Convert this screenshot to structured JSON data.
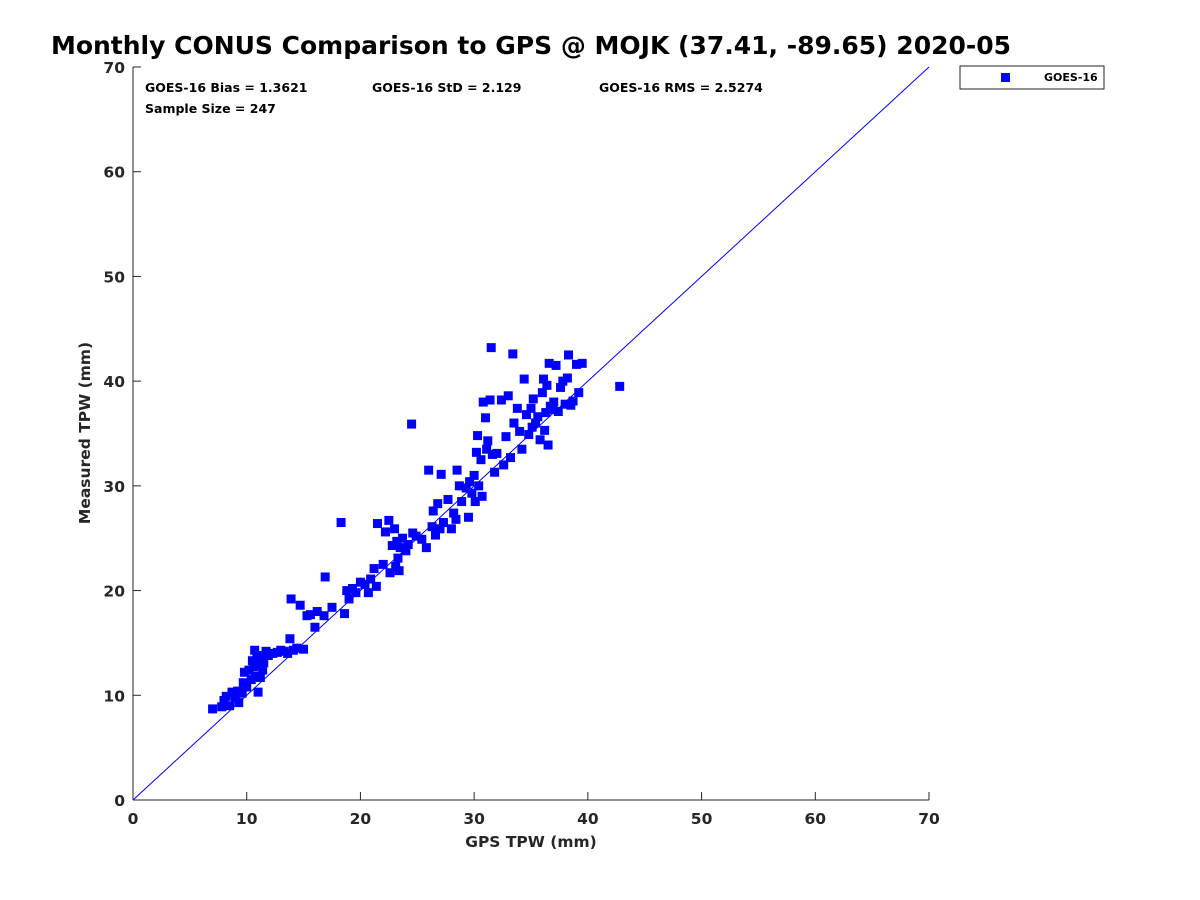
{
  "chart_data": {
    "type": "scatter",
    "title": "Monthly CONUS Comparison to GPS @ MOJK (37.41, -89.65) 2020-05",
    "xlabel": "GPS TPW (mm)",
    "ylabel": "Measured TPW (mm)",
    "xlim": [
      0,
      70
    ],
    "ylim": [
      0,
      70
    ],
    "xticks": [
      "0",
      "10",
      "20",
      "30",
      "40",
      "50",
      "60",
      "70"
    ],
    "yticks": [
      "0",
      "10",
      "20",
      "30",
      "40",
      "50",
      "60",
      "70"
    ],
    "grid": false,
    "legend_position": "top-right",
    "stats": {
      "bias": "GOES-16 Bias = 1.3621",
      "std": "GOES-16 StD = 2.129",
      "rms": "GOES-16 RMS = 2.5274",
      "sample_size": "Sample Size = 247"
    },
    "reference_line": {
      "from": [
        0,
        0
      ],
      "to": [
        70,
        70
      ],
      "color": "#0000ff"
    },
    "series": [
      {
        "name": "GOES-16",
        "color": "#0000ff",
        "marker": "square",
        "points": [
          [
            7.0,
            8.7
          ],
          [
            7.8,
            8.9
          ],
          [
            8.0,
            9.5
          ],
          [
            8.2,
            9.9
          ],
          [
            8.5,
            9.0
          ],
          [
            8.7,
            10.3
          ],
          [
            9.0,
            9.8
          ],
          [
            9.2,
            10.4
          ],
          [
            9.3,
            9.3
          ],
          [
            9.6,
            10.2
          ],
          [
            9.7,
            11.2
          ],
          [
            9.8,
            12.2
          ],
          [
            10.0,
            10.8
          ],
          [
            10.2,
            12.4
          ],
          [
            10.4,
            11.5
          ],
          [
            10.5,
            13.3
          ],
          [
            10.6,
            12.7
          ],
          [
            10.7,
            14.3
          ],
          [
            10.8,
            11.8
          ],
          [
            10.9,
            13.8
          ],
          [
            11.0,
            10.3
          ],
          [
            11.1,
            12.9
          ],
          [
            11.2,
            11.7
          ],
          [
            11.3,
            13.5
          ],
          [
            11.4,
            12.4
          ],
          [
            11.5,
            13.1
          ],
          [
            11.7,
            14.2
          ],
          [
            11.9,
            13.8
          ],
          [
            12.3,
            14.0
          ],
          [
            12.7,
            14.1
          ],
          [
            13.0,
            14.3
          ],
          [
            13.3,
            14.2
          ],
          [
            13.6,
            14.0
          ],
          [
            13.8,
            15.4
          ],
          [
            13.9,
            19.2
          ],
          [
            14.1,
            14.3
          ],
          [
            14.4,
            14.5
          ],
          [
            14.7,
            18.6
          ],
          [
            15.0,
            14.4
          ],
          [
            15.3,
            17.6
          ],
          [
            15.6,
            17.7
          ],
          [
            16.0,
            16.5
          ],
          [
            16.2,
            18.0
          ],
          [
            16.8,
            17.6
          ],
          [
            16.9,
            21.3
          ],
          [
            17.5,
            18.4
          ],
          [
            18.3,
            26.5
          ],
          [
            18.6,
            17.8
          ],
          [
            18.8,
            20.0
          ],
          [
            19.0,
            19.2
          ],
          [
            19.3,
            20.2
          ],
          [
            19.6,
            19.8
          ],
          [
            20.0,
            20.8
          ],
          [
            20.4,
            20.6
          ],
          [
            20.7,
            19.8
          ],
          [
            20.9,
            21.1
          ],
          [
            21.2,
            22.1
          ],
          [
            21.4,
            20.4
          ],
          [
            21.5,
            26.4
          ],
          [
            22.0,
            22.5
          ],
          [
            22.2,
            25.6
          ],
          [
            22.5,
            26.7
          ],
          [
            22.6,
            21.7
          ],
          [
            22.8,
            24.3
          ],
          [
            23.0,
            25.9
          ],
          [
            23.1,
            22.3
          ],
          [
            23.2,
            24.7
          ],
          [
            23.3,
            23.1
          ],
          [
            23.4,
            21.9
          ],
          [
            23.5,
            24.1
          ],
          [
            23.7,
            25.0
          ],
          [
            24.0,
            23.8
          ],
          [
            24.2,
            24.4
          ],
          [
            24.5,
            35.9
          ],
          [
            24.6,
            25.5
          ],
          [
            24.9,
            25.2
          ],
          [
            25.4,
            24.9
          ],
          [
            25.8,
            24.1
          ],
          [
            26.0,
            31.5
          ],
          [
            26.3,
            26.1
          ],
          [
            26.4,
            27.6
          ],
          [
            26.6,
            25.3
          ],
          [
            26.8,
            28.3
          ],
          [
            27.0,
            25.9
          ],
          [
            27.1,
            31.1
          ],
          [
            27.3,
            26.5
          ],
          [
            27.7,
            28.7
          ],
          [
            28.0,
            25.9
          ],
          [
            28.2,
            27.4
          ],
          [
            28.4,
            26.8
          ],
          [
            28.5,
            31.5
          ],
          [
            28.7,
            30.0
          ],
          [
            28.9,
            28.5
          ],
          [
            29.3,
            29.8
          ],
          [
            29.5,
            27.0
          ],
          [
            29.6,
            30.4
          ],
          [
            29.8,
            29.3
          ],
          [
            30.0,
            31.0
          ],
          [
            30.1,
            28.5
          ],
          [
            30.2,
            33.2
          ],
          [
            30.3,
            34.8
          ],
          [
            30.4,
            30.0
          ],
          [
            30.6,
            32.5
          ],
          [
            30.7,
            29.0
          ],
          [
            30.8,
            38.0
          ],
          [
            31.0,
            36.5
          ],
          [
            31.1,
            33.5
          ],
          [
            31.2,
            34.3
          ],
          [
            31.4,
            38.2
          ],
          [
            31.5,
            43.2
          ],
          [
            31.6,
            33.0
          ],
          [
            31.8,
            31.3
          ],
          [
            32.0,
            33.1
          ],
          [
            32.4,
            38.2
          ],
          [
            32.6,
            32.0
          ],
          [
            32.8,
            34.7
          ],
          [
            33.0,
            38.6
          ],
          [
            33.2,
            32.7
          ],
          [
            33.4,
            42.6
          ],
          [
            33.5,
            36.0
          ],
          [
            33.8,
            37.4
          ],
          [
            34.0,
            35.2
          ],
          [
            34.2,
            33.5
          ],
          [
            34.4,
            40.2
          ],
          [
            34.6,
            36.8
          ],
          [
            34.8,
            34.9
          ],
          [
            35.0,
            37.4
          ],
          [
            35.1,
            35.6
          ],
          [
            35.2,
            38.3
          ],
          [
            35.4,
            36.0
          ],
          [
            35.6,
            36.6
          ],
          [
            35.8,
            34.4
          ],
          [
            36.0,
            38.9
          ],
          [
            36.1,
            40.2
          ],
          [
            36.2,
            35.3
          ],
          [
            36.3,
            37.0
          ],
          [
            36.4,
            39.6
          ],
          [
            36.5,
            33.9
          ],
          [
            36.6,
            41.7
          ],
          [
            36.7,
            37.6
          ],
          [
            36.9,
            37.3
          ],
          [
            37.0,
            38.0
          ],
          [
            37.2,
            41.5
          ],
          [
            37.4,
            37.1
          ],
          [
            37.6,
            39.4
          ],
          [
            37.8,
            40.0
          ],
          [
            38.0,
            37.8
          ],
          [
            38.2,
            40.3
          ],
          [
            38.3,
            42.5
          ],
          [
            38.5,
            37.7
          ],
          [
            38.7,
            38.1
          ],
          [
            39.0,
            41.6
          ],
          [
            39.2,
            38.9
          ],
          [
            39.5,
            41.7
          ],
          [
            42.8,
            39.5
          ]
        ]
      }
    ]
  }
}
